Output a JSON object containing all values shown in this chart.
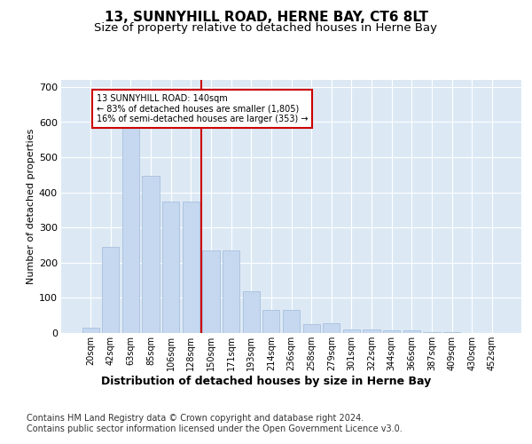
{
  "title": "13, SUNNYHILL ROAD, HERNE BAY, CT6 8LT",
  "subtitle": "Size of property relative to detached houses in Herne Bay",
  "xlabel": "Distribution of detached houses by size in Herne Bay",
  "ylabel": "Number of detached properties",
  "categories": [
    "20sqm",
    "42sqm",
    "63sqm",
    "85sqm",
    "106sqm",
    "128sqm",
    "150sqm",
    "171sqm",
    "193sqm",
    "214sqm",
    "236sqm",
    "258sqm",
    "279sqm",
    "301sqm",
    "322sqm",
    "344sqm",
    "366sqm",
    "387sqm",
    "409sqm",
    "430sqm",
    "452sqm"
  ],
  "bar_values": [
    15,
    245,
    585,
    447,
    375,
    375,
    235,
    235,
    120,
    65,
    65,
    25,
    28,
    10,
    10,
    8,
    8,
    3,
    2,
    1,
    1
  ],
  "bar_color": "#c5d8f0",
  "bar_edge_color": "#a0b8d8",
  "vline_x_index": 6,
  "vline_color": "#cc0000",
  "annotation_text": "13 SUNNYHILL ROAD: 140sqm\n← 83% of detached houses are smaller (1,805)\n16% of semi-detached houses are larger (353) →",
  "annotation_box_color": "#ffffff",
  "annotation_box_edge": "#cc0000",
  "ylim": [
    0,
    720
  ],
  "yticks": [
    0,
    100,
    200,
    300,
    400,
    500,
    600,
    700
  ],
  "plot_bg_color": "#dce9f5",
  "footer1": "Contains HM Land Registry data © Crown copyright and database right 2024.",
  "footer2": "Contains public sector information licensed under the Open Government Licence v3.0.",
  "title_fontsize": 11,
  "subtitle_fontsize": 9.5,
  "xlabel_fontsize": 9,
  "ylabel_fontsize": 8,
  "footer_fontsize": 7
}
